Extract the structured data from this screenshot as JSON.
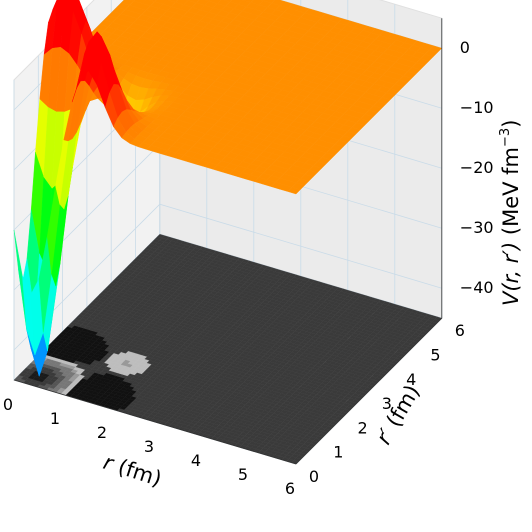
{
  "chart_data": {
    "type": "surface",
    "colormap": "hsv",
    "contour_projection": "bottom plane, grayscale filled contours",
    "xlabel": "r (fm)",
    "ylabel": "r′ (fm)",
    "zlabel": "V(r, r′) (MeV fm⁻³)",
    "xlim": [
      0,
      6
    ],
    "ylim": [
      0,
      6
    ],
    "zlim": [
      -45,
      5
    ],
    "x_ticks": [
      "0",
      "1",
      "2",
      "3",
      "4",
      "5",
      "6"
    ],
    "y_ticks": [
      "0",
      "1",
      "2",
      "3",
      "4",
      "5",
      "6"
    ],
    "z_ticks": [
      "0",
      "−10",
      "−20",
      "−30",
      "−40"
    ],
    "grid": true,
    "surface_min": {
      "r": 0.4,
      "r_prime": 0.4,
      "V": -45
    },
    "surface_max": {
      "r": 1.5,
      "r_prime": 1.5,
      "V": 3
    },
    "plateau_value": 0,
    "contour_levels": [
      -40,
      -30,
      -20,
      -10,
      -5,
      -2
    ]
  },
  "labels": {
    "xlabel_main": "r",
    "xlabel_unit": " (fm)",
    "ylabel_main": "r′",
    "ylabel_unit": " (fm)",
    "zlabel_main": "V(r, r′)",
    "zlabel_unit": " (MeV fm",
    "zlabel_exp": "−3",
    "zlabel_close": ")"
  }
}
